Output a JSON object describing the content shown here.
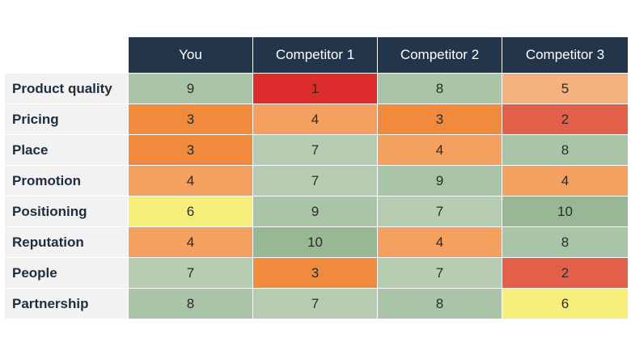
{
  "chart_data": {
    "type": "heatmap",
    "title": "",
    "columns": [
      "You",
      "Competitor 1",
      "Competitor 2",
      "Competitor 3"
    ],
    "rows": [
      "Product quality",
      "Pricing",
      "Place",
      "Promotion",
      "Positioning",
      "Reputation",
      "People",
      "Partnership"
    ],
    "values": [
      [
        9,
        1,
        8,
        5
      ],
      [
        3,
        4,
        3,
        2
      ],
      [
        3,
        7,
        4,
        8
      ],
      [
        4,
        7,
        9,
        4
      ],
      [
        6,
        9,
        7,
        10
      ],
      [
        4,
        10,
        4,
        8
      ],
      [
        7,
        3,
        7,
        2
      ],
      [
        8,
        7,
        8,
        6
      ]
    ],
    "colors": {
      "1": "#dc2c2c",
      "2": "#e2604a",
      "3": "#f08a3c",
      "4": "#f4a060",
      "5": "#f6b27e",
      "6": "#f8ef7a",
      "7": "#b7cdb2",
      "8": "#a9c4a6",
      "9": "#a9c4a6",
      "10": "#97b795",
      "header_bg": "#22354a",
      "label_bg": "#f2f2f2"
    }
  }
}
